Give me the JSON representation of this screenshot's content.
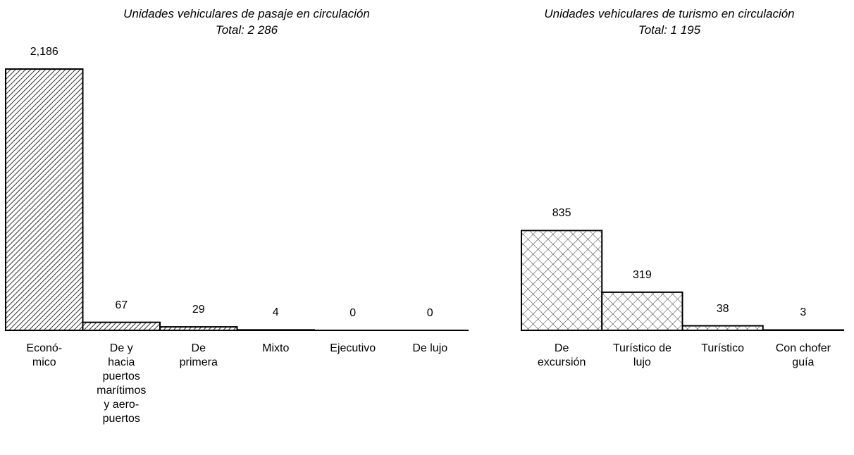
{
  "chart_data": [
    {
      "type": "bar",
      "title": "Unidades vehiculares de pasaje en circulación",
      "subtitle": "Total: 2 286",
      "categories": [
        "Econó-\nmico",
        "De y\nhacia\npuertos\nmarítimos\ny aero-\npuertos",
        "De\nprimera",
        "Mixto",
        "Ejecutivo",
        "De lujo"
      ],
      "values": [
        2186,
        67,
        29,
        4,
        0,
        0
      ],
      "value_labels": [
        "2,186",
        "67",
        "29",
        "4",
        "0",
        "0"
      ],
      "color": "#000000",
      "pattern": "diagonal"
    },
    {
      "type": "bar",
      "title": "Unidades vehiculares de turismo en circulación",
      "subtitle": "Total: 1 195",
      "categories": [
        "De\nexcursión",
        "Turístico de\nlujo",
        "Turístico",
        "Con chofer\nguía"
      ],
      "values": [
        835,
        319,
        38,
        3
      ],
      "value_labels": [
        "835",
        "319",
        "38",
        "3"
      ],
      "color": "#000000",
      "pattern": "crosshatch"
    }
  ]
}
